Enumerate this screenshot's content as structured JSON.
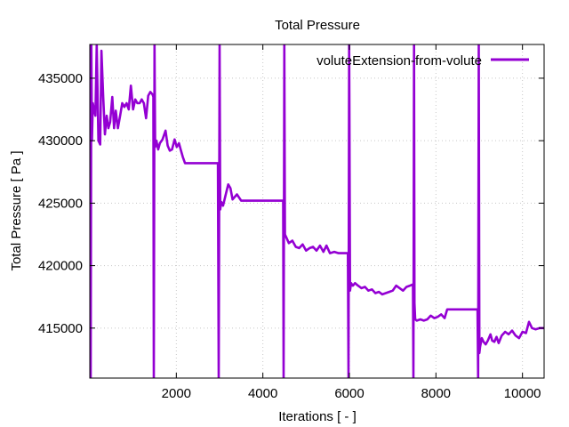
{
  "chart_data": {
    "type": "line",
    "title": "Total Pressure",
    "xlabel": "Iterations [ - ]",
    "ylabel": "Total Pressure [ Pa ]",
    "xlim": [
      0,
      10500
    ],
    "ylim": [
      411000,
      437700
    ],
    "xticks": [
      2000,
      4000,
      6000,
      8000,
      10000
    ],
    "yticks": [
      415000,
      420000,
      425000,
      430000,
      435000
    ],
    "grid": true,
    "legend_position": "top-right",
    "series": [
      {
        "name": "voluteExtension-from-volute",
        "color": "#9400d3",
        "points": [
          [
            0,
            437700
          ],
          [
            20,
            411000
          ],
          [
            35,
            437700
          ],
          [
            50,
            430000
          ],
          [
            70,
            433000
          ],
          [
            100,
            432400
          ],
          [
            130,
            432000
          ],
          [
            160,
            437700
          ],
          [
            200,
            430000
          ],
          [
            240,
            429700
          ],
          [
            270,
            437200
          ],
          [
            310,
            433500
          ],
          [
            350,
            430500
          ],
          [
            390,
            432000
          ],
          [
            430,
            431000
          ],
          [
            470,
            431500
          ],
          [
            520,
            433500
          ],
          [
            560,
            431000
          ],
          [
            600,
            432400
          ],
          [
            650,
            431000
          ],
          [
            700,
            432000
          ],
          [
            750,
            433000
          ],
          [
            800,
            432700
          ],
          [
            850,
            433000
          ],
          [
            900,
            432500
          ],
          [
            950,
            434400
          ],
          [
            1000,
            432500
          ],
          [
            1050,
            433300
          ],
          [
            1100,
            433000
          ],
          [
            1150,
            433000
          ],
          [
            1200,
            433300
          ],
          [
            1250,
            433000
          ],
          [
            1300,
            431800
          ],
          [
            1350,
            433600
          ],
          [
            1400,
            433900
          ],
          [
            1450,
            433700
          ],
          [
            1470,
            433500
          ],
          [
            1480,
            411000
          ],
          [
            1495,
            437700
          ],
          [
            1510,
            429500
          ],
          [
            1540,
            430000
          ],
          [
            1580,
            429300
          ],
          [
            1620,
            429800
          ],
          [
            1680,
            430100
          ],
          [
            1750,
            430800
          ],
          [
            1800,
            429600
          ],
          [
            1850,
            429200
          ],
          [
            1900,
            429300
          ],
          [
            1960,
            430100
          ],
          [
            2010,
            429500
          ],
          [
            2060,
            429800
          ],
          [
            2100,
            429300
          ],
          [
            2150,
            428700
          ],
          [
            2200,
            428200
          ],
          [
            2500,
            428200
          ],
          [
            2800,
            428200
          ],
          [
            2960,
            428200
          ],
          [
            2980,
            411000
          ],
          [
            3000,
            437700
          ],
          [
            3015,
            424500
          ],
          [
            3040,
            425100
          ],
          [
            3080,
            424800
          ],
          [
            3150,
            425800
          ],
          [
            3200,
            426500
          ],
          [
            3250,
            426200
          ],
          [
            3300,
            425300
          ],
          [
            3400,
            425700
          ],
          [
            3500,
            425200
          ],
          [
            3800,
            425200
          ],
          [
            4200,
            425200
          ],
          [
            4470,
            425200
          ],
          [
            4480,
            411000
          ],
          [
            4495,
            437700
          ],
          [
            4510,
            422500
          ],
          [
            4550,
            422200
          ],
          [
            4600,
            421800
          ],
          [
            4680,
            422000
          ],
          [
            4760,
            421500
          ],
          [
            4840,
            421400
          ],
          [
            4920,
            421700
          ],
          [
            5000,
            421200
          ],
          [
            5080,
            421400
          ],
          [
            5160,
            421500
          ],
          [
            5240,
            421200
          ],
          [
            5320,
            421600
          ],
          [
            5400,
            421100
          ],
          [
            5470,
            421600
          ],
          [
            5550,
            421000
          ],
          [
            5650,
            421100
          ],
          [
            5750,
            421000
          ],
          [
            5900,
            421000
          ],
          [
            5965,
            421000
          ],
          [
            5980,
            411000
          ],
          [
            5993,
            437700
          ],
          [
            6000,
            432800
          ],
          [
            6015,
            418000
          ],
          [
            6040,
            418600
          ],
          [
            6080,
            418400
          ],
          [
            6130,
            418600
          ],
          [
            6200,
            418400
          ],
          [
            6280,
            418200
          ],
          [
            6360,
            418300
          ],
          [
            6440,
            418000
          ],
          [
            6520,
            418100
          ],
          [
            6600,
            417800
          ],
          [
            6680,
            417900
          ],
          [
            6760,
            417700
          ],
          [
            6840,
            417800
          ],
          [
            6920,
            417900
          ],
          [
            7000,
            418000
          ],
          [
            7080,
            418400
          ],
          [
            7160,
            418200
          ],
          [
            7240,
            418000
          ],
          [
            7320,
            418300
          ],
          [
            7400,
            418400
          ],
          [
            7470,
            418500
          ],
          [
            7480,
            411000
          ],
          [
            7493,
            437700
          ],
          [
            7505,
            417000
          ],
          [
            7520,
            415700
          ],
          [
            7560,
            415600
          ],
          [
            7640,
            415700
          ],
          [
            7720,
            415600
          ],
          [
            7800,
            415700
          ],
          [
            7880,
            416000
          ],
          [
            7960,
            415800
          ],
          [
            8040,
            415900
          ],
          [
            8120,
            416100
          ],
          [
            8200,
            415800
          ],
          [
            8260,
            416500
          ],
          [
            8400,
            416500
          ],
          [
            8600,
            416500
          ],
          [
            8800,
            416500
          ],
          [
            8960,
            416500
          ],
          [
            8975,
            411000
          ],
          [
            8990,
            437700
          ],
          [
            9005,
            413000
          ],
          [
            9020,
            413500
          ],
          [
            9060,
            414200
          ],
          [
            9100,
            413900
          ],
          [
            9150,
            413700
          ],
          [
            9200,
            414000
          ],
          [
            9260,
            414500
          ],
          [
            9300,
            414000
          ],
          [
            9350,
            413900
          ],
          [
            9400,
            414300
          ],
          [
            9450,
            413800
          ],
          [
            9520,
            414400
          ],
          [
            9600,
            414700
          ],
          [
            9680,
            414500
          ],
          [
            9760,
            414800
          ],
          [
            9840,
            414400
          ],
          [
            9920,
            414200
          ],
          [
            10000,
            414700
          ],
          [
            10080,
            414600
          ],
          [
            10150,
            415500
          ],
          [
            10220,
            415000
          ],
          [
            10300,
            414900
          ],
          [
            10400,
            415000
          ],
          [
            10500,
            415000
          ]
        ]
      }
    ]
  }
}
